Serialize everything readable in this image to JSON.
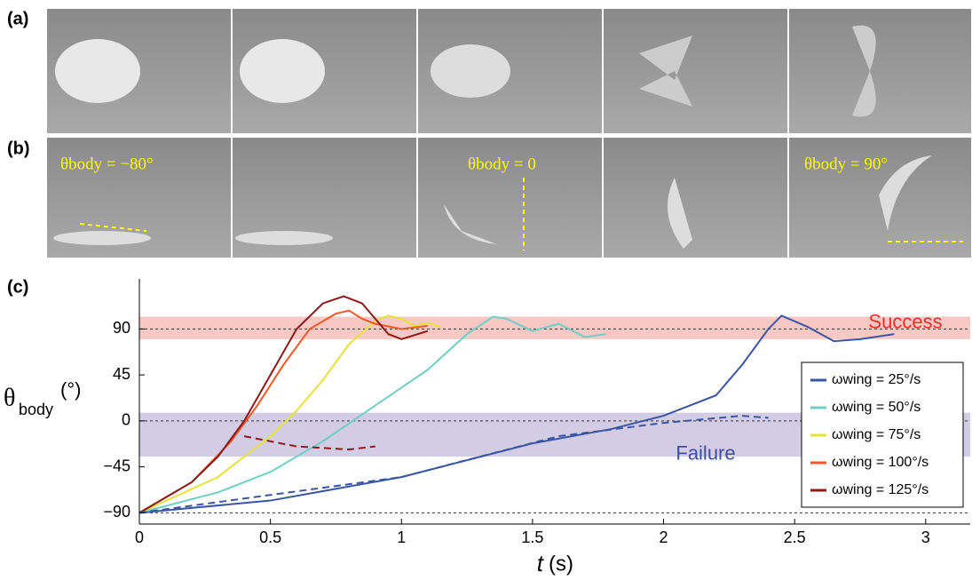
{
  "panels": {
    "a": "(a)",
    "b": "(b)",
    "c": "(c)"
  },
  "photo_annotations": [
    "θbody = −80°",
    "θbody = 0",
    "θbody = 90°"
  ],
  "chart_data": {
    "type": "line",
    "xlabel": {
      "symbol": "t",
      "unit": "(s)"
    },
    "ylabel": {
      "symbol": "θ",
      "subscript": "body",
      "unit": "(°)"
    },
    "xlim": [
      0,
      3.17
    ],
    "ylim": [
      -101,
      139
    ],
    "xticks": [
      0,
      0.5,
      1,
      1.5,
      2,
      2.5,
      3
    ],
    "yticks": [
      {
        "value": -90,
        "label": "−90"
      },
      {
        "value": -45,
        "label": "−45"
      },
      0,
      45,
      90
    ],
    "bands": [
      {
        "label": "Success",
        "range": [
          80,
          102
        ],
        "color": "#f8c8c4",
        "text_color": "#e8302a"
      },
      {
        "label": "Failure",
        "range": [
          -35,
          8
        ],
        "color": "#d2cce4",
        "text_color": "#3b4fa0"
      }
    ],
    "reference_lines": [
      90,
      0,
      -90
    ],
    "legend": "right",
    "series": [
      {
        "name": "ωwing = 25°/s",
        "color": "#3a55a4",
        "x": [
          0,
          0.5,
          1,
          1.5,
          1.8,
          2,
          2.2,
          2.3,
          2.4,
          2.45,
          2.55,
          2.65,
          2.75,
          2.88
        ],
        "values": [
          -90,
          -78,
          -55,
          -22,
          -8,
          5,
          25,
          55,
          90,
          103,
          92,
          78,
          80,
          85
        ]
      },
      {
        "name": "ωwing = 50°/s",
        "color": "#6fcfc4",
        "x": [
          0,
          0.3,
          0.5,
          0.7,
          0.9,
          1.1,
          1.25,
          1.35,
          1.4,
          1.5,
          1.6,
          1.7,
          1.78
        ],
        "values": [
          -90,
          -70,
          -50,
          -20,
          15,
          50,
          85,
          102,
          100,
          88,
          95,
          82,
          85
        ]
      },
      {
        "name": "ωwing = 75°/s",
        "color": "#e6e23a",
        "x": [
          0,
          0.3,
          0.5,
          0.6,
          0.7,
          0.8,
          0.9,
          0.95,
          1,
          1.05,
          1.1,
          1.15
        ],
        "values": [
          -90,
          -55,
          -15,
          10,
          40,
          75,
          98,
          103,
          100,
          93,
          96,
          92
        ]
      },
      {
        "name": "ωwing = 100°/s",
        "color": "#f05a28",
        "x": [
          0,
          0.2,
          0.35,
          0.45,
          0.55,
          0.65,
          0.75,
          0.8,
          0.85,
          0.9,
          1,
          1.1
        ],
        "values": [
          -90,
          -60,
          -20,
          15,
          55,
          90,
          105,
          108,
          100,
          95,
          90,
          93
        ]
      },
      {
        "name": "ωwing = 125°/s",
        "color": "#8b1a1a",
        "x": [
          0,
          0.2,
          0.3,
          0.4,
          0.5,
          0.6,
          0.7,
          0.78,
          0.85,
          0.9,
          0.95,
          1,
          1.1
        ],
        "values": [
          -90,
          -60,
          -35,
          0,
          45,
          90,
          115,
          122,
          115,
          100,
          85,
          80,
          88
        ]
      },
      {
        "color": "#3a55a4",
        "dashed": true,
        "x": [
          0,
          1,
          1.6,
          2,
          2.3,
          2.4
        ],
        "values": [
          -90,
          -55,
          -15,
          -2,
          5,
          3
        ]
      },
      {
        "color": "#8b1a1a",
        "dashed": true,
        "x": [
          0.4,
          0.6,
          0.8,
          0.9
        ],
        "values": [
          -15,
          -25,
          -28,
          -25
        ]
      }
    ]
  }
}
